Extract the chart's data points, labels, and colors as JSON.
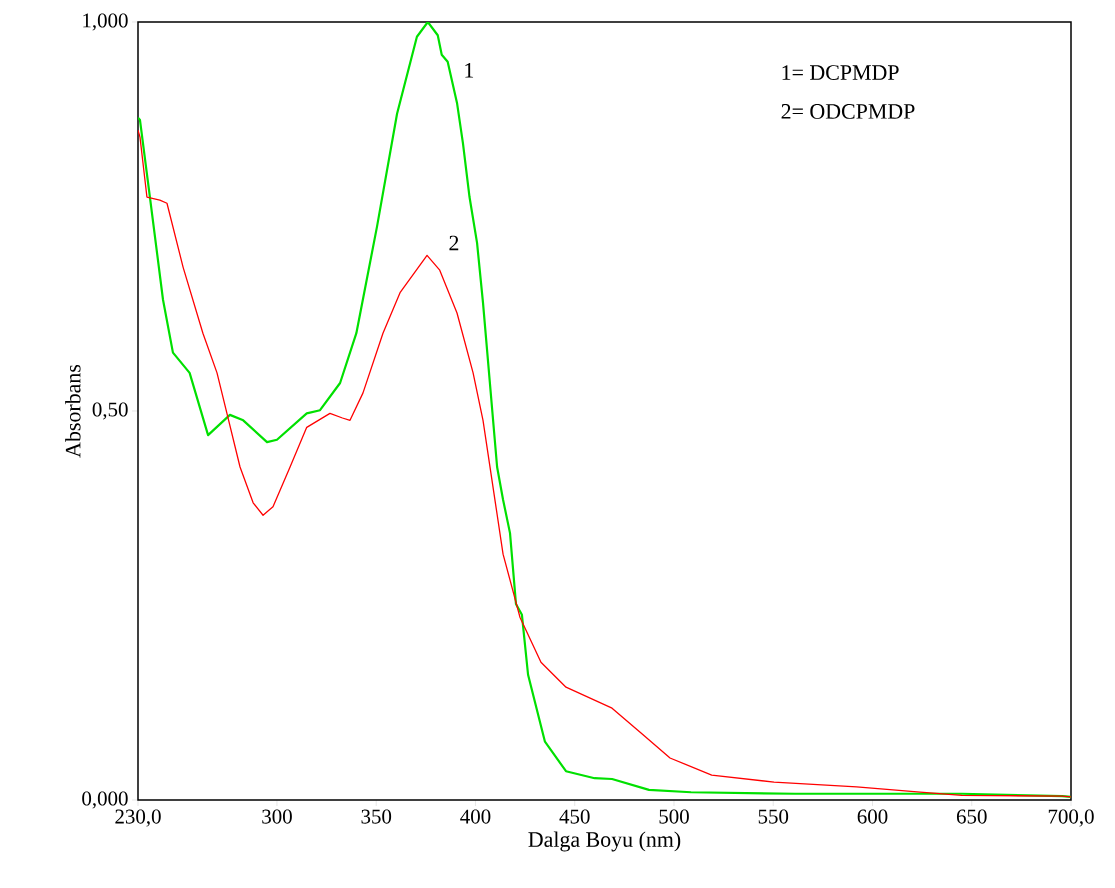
{
  "chart_data": {
    "type": "line",
    "xlabel": "Dalga Boyu (nm)",
    "ylabel": "Absorbans",
    "xlim": [
      230,
      700
    ],
    "ylim": [
      0,
      1
    ],
    "xticks": [
      {
        "value": 230,
        "label": "230,0"
      },
      300,
      350,
      400,
      450,
      500,
      550,
      600,
      650,
      {
        "value": 700,
        "label": "700,0"
      }
    ],
    "yticks": [
      {
        "value": 0,
        "label": "0,000"
      },
      {
        "value": 0.5,
        "label": "0,50"
      },
      {
        "value": 1,
        "label": "1,000"
      }
    ],
    "series": [
      {
        "color": "#00e000",
        "x": [
          230,
          231,
          236,
          242.6,
          247.6,
          256,
          265.3,
          276.3,
          283,
          295,
          300,
          315,
          321.7,
          331.8,
          340,
          350.4,
          360.5,
          370.5,
          376,
          381,
          383,
          386,
          390.7,
          393.7,
          397,
          400.8,
          403.8,
          410.9,
          413.9,
          417.4,
          420.4,
          423.4,
          426.5,
          435,
          445.6,
          460,
          468.8,
          487.4,
          508.6,
          561,
          645,
          695.5,
          700
        ],
        "values": [
          0.877,
          0.874,
          0.775,
          0.643,
          0.575,
          0.549,
          0.469,
          0.495,
          0.488,
          0.46,
          0.463,
          0.497,
          0.501,
          0.536,
          0.6,
          0.737,
          0.882,
          0.981,
          1.0,
          0.983,
          0.958,
          0.949,
          0.896,
          0.844,
          0.775,
          0.716,
          0.639,
          0.428,
          0.386,
          0.343,
          0.252,
          0.238,
          0.161,
          0.075,
          0.037,
          0.028,
          0.027,
          0.013,
          0.01,
          0.008,
          0.008,
          0.005,
          0.004
        ]
      },
      {
        "color": "#ff0000",
        "x": [
          230,
          231,
          234.5,
          241,
          244.6,
          252.7,
          262.7,
          269.8,
          274.8,
          281.4,
          288,
          293,
          298,
          306.6,
          315,
          326.7,
          333,
          336.8,
          343.3,
          353.4,
          362,
          375.6,
          382,
          390.7,
          398.8,
          403.8,
          413.9,
          422.4,
          433,
          445.6,
          468.8,
          483.4,
          498,
          519,
          550.4,
          592,
          624,
          645,
          695.5,
          700
        ],
        "values": [
          0.861,
          0.852,
          0.775,
          0.771,
          0.767,
          0.685,
          0.6,
          0.549,
          0.497,
          0.428,
          0.382,
          0.366,
          0.377,
          0.428,
          0.479,
          0.497,
          0.491,
          0.488,
          0.523,
          0.6,
          0.652,
          0.7,
          0.681,
          0.626,
          0.549,
          0.488,
          0.316,
          0.235,
          0.177,
          0.145,
          0.118,
          0.086,
          0.054,
          0.032,
          0.023,
          0.017,
          0.01,
          0.006,
          0.005,
          0.004
        ]
      }
    ],
    "annotations": [
      "1",
      "2",
      "1= DCPMDP",
      "2= ODCPMDP"
    ]
  }
}
